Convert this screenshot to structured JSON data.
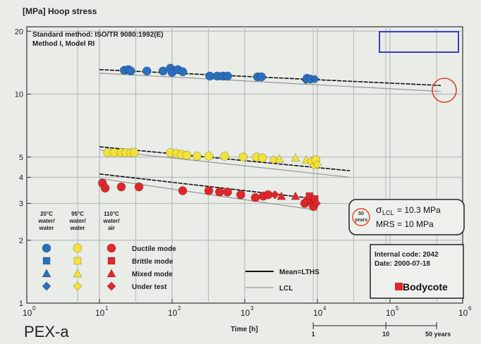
{
  "chart_data": {
    "type": "scatter",
    "title": "",
    "ylabel": "[MPa] Hoop stress",
    "xlabel": "Time [h]",
    "x_scale": "log",
    "y_scale": "log",
    "xlim": [
      1,
      1000000
    ],
    "ylim": [
      1,
      21
    ],
    "grid": true,
    "x_ticks": [
      {
        "value": 1,
        "base": "10",
        "exp": "0"
      },
      {
        "value": 10,
        "base": "10",
        "exp": "1"
      },
      {
        "value": 100,
        "base": "10",
        "exp": "2"
      },
      {
        "value": 1000,
        "base": "10",
        "exp": "3"
      },
      {
        "value": 10000,
        "base": "10",
        "exp": "4"
      },
      {
        "value": 100000,
        "base": "10",
        "exp": "5"
      },
      {
        "value": 1000000,
        "base": "10",
        "exp": "6"
      }
    ],
    "y_ticks": [
      {
        "value": 1,
        "label": "1"
      },
      {
        "value": 2,
        "label": "2"
      },
      {
        "value": 3,
        "label": "3"
      },
      {
        "value": 4,
        "label": "4"
      },
      {
        "value": 5,
        "label": "5"
      },
      {
        "value": 10,
        "label": "10"
      },
      {
        "value": 20,
        "label": "20"
      }
    ],
    "method_text": [
      "Standard method: ISO/TR 9080:1992(E)",
      "Method I, Model RI"
    ],
    "product_label": "PEX-a",
    "years_axis": {
      "ticks": [
        {
          "label": "1",
          "x": 8766
        },
        {
          "label": "10",
          "x": 87660
        },
        {
          "label": "50 years",
          "x": 438300
        }
      ]
    },
    "legend": {
      "columns": [
        {
          "header": [
            "20°C",
            "water/",
            "water"
          ]
        },
        {
          "header": [
            "95°C",
            "water/",
            "water"
          ]
        },
        {
          "header": [
            "110°C",
            "water/",
            "air"
          ]
        }
      ],
      "modes": [
        {
          "label": "Ductile mode",
          "shape": "circle"
        },
        {
          "label": "Brittle mode",
          "shape": "square"
        },
        {
          "label": "Mixed mode",
          "shape": "triangle"
        },
        {
          "label": "Under test",
          "shape": "diamond"
        }
      ],
      "lines": [
        {
          "label": "Mean=LTHS",
          "style": "solid-bold"
        },
        {
          "label": "LCL",
          "style": "thin"
        }
      ]
    },
    "result_box": {
      "sigma": "σ",
      "sigma_sub": "LCL",
      "sigma_value": "= 10.3 MPa",
      "mrs": "MRS = 10 MPa",
      "years_badge": [
        "50",
        "years"
      ]
    },
    "info_box": {
      "code": "Internal code: 2042",
      "date": "2000-07-18",
      "date_label": "Date: 2000-07-18",
      "logo": "Bodycote"
    },
    "colors": {
      "blue": "#2a6fbf",
      "yellow": "#f2e23a",
      "red": "#e1262b",
      "grid": "#b9bdb9",
      "annotation": "#d9442f",
      "frame_blue": "#3a3fb5"
    },
    "series": [
      {
        "name": "20°C",
        "color_key": "blue",
        "points": [
          {
            "x": 22,
            "y": 13.0,
            "shape": "circle"
          },
          {
            "x": 25,
            "y": 13.1,
            "shape": "circle"
          },
          {
            "x": 27,
            "y": 12.9,
            "shape": "circle"
          },
          {
            "x": 45,
            "y": 12.9,
            "shape": "circle"
          },
          {
            "x": 75,
            "y": 12.9,
            "shape": "circle"
          },
          {
            "x": 95,
            "y": 13.3,
            "shape": "circle"
          },
          {
            "x": 100,
            "y": 12.7,
            "shape": "circle"
          },
          {
            "x": 120,
            "y": 13.1,
            "shape": "circle"
          },
          {
            "x": 140,
            "y": 12.8,
            "shape": "circle"
          },
          {
            "x": 330,
            "y": 12.2,
            "shape": "circle"
          },
          {
            "x": 420,
            "y": 12.2,
            "shape": "circle"
          },
          {
            "x": 500,
            "y": 12.2,
            "shape": "circle"
          },
          {
            "x": 580,
            "y": 12.2,
            "shape": "circle"
          },
          {
            "x": 1500,
            "y": 12.1,
            "shape": "circle"
          },
          {
            "x": 1700,
            "y": 12.1,
            "shape": "circle"
          },
          {
            "x": 6900,
            "y": 11.7,
            "shape": "diamond"
          },
          {
            "x": 7200,
            "y": 11.9,
            "shape": "circle"
          },
          {
            "x": 8000,
            "y": 11.8,
            "shape": "circle"
          },
          {
            "x": 9300,
            "y": 11.8,
            "shape": "diamond"
          }
        ],
        "mean_line": [
          {
            "x": 10,
            "y": 13.1
          },
          {
            "x": 500000,
            "y": 11.0
          }
        ],
        "lcl_line": [
          {
            "x": 10,
            "y": 12.6
          },
          {
            "x": 500000,
            "y": 10.3
          }
        ]
      },
      {
        "name": "95°C",
        "color_key": "yellow",
        "points": [
          {
            "x": 13,
            "y": 5.25,
            "shape": "circle"
          },
          {
            "x": 16,
            "y": 5.25,
            "shape": "circle"
          },
          {
            "x": 20,
            "y": 5.25,
            "shape": "circle"
          },
          {
            "x": 23,
            "y": 5.25,
            "shape": "circle"
          },
          {
            "x": 27,
            "y": 5.25,
            "shape": "circle"
          },
          {
            "x": 30,
            "y": 5.25,
            "shape": "circle"
          },
          {
            "x": 95,
            "y": 5.25,
            "shape": "circle"
          },
          {
            "x": 115,
            "y": 5.2,
            "shape": "circle"
          },
          {
            "x": 135,
            "y": 5.15,
            "shape": "circle"
          },
          {
            "x": 160,
            "y": 5.1,
            "shape": "circle"
          },
          {
            "x": 220,
            "y": 5.05,
            "shape": "circle"
          },
          {
            "x": 320,
            "y": 5.05,
            "shape": "circle"
          },
          {
            "x": 530,
            "y": 5.05,
            "shape": "circle"
          },
          {
            "x": 950,
            "y": 5.0,
            "shape": "circle"
          },
          {
            "x": 1450,
            "y": 5.0,
            "shape": "circle"
          },
          {
            "x": 1750,
            "y": 4.95,
            "shape": "circle"
          },
          {
            "x": 2500,
            "y": 4.85,
            "shape": "diamond"
          },
          {
            "x": 3000,
            "y": 4.9,
            "shape": "triangle"
          },
          {
            "x": 5000,
            "y": 4.95,
            "shape": "triangle"
          },
          {
            "x": 7000,
            "y": 4.85,
            "shape": "triangle"
          },
          {
            "x": 8500,
            "y": 4.75,
            "shape": "circle"
          },
          {
            "x": 9000,
            "y": 4.55,
            "shape": "diamond"
          },
          {
            "x": 9500,
            "y": 4.85,
            "shape": "circle"
          },
          {
            "x": 10000,
            "y": 4.6,
            "shape": "diamond"
          }
        ],
        "mean_line": [
          {
            "x": 10,
            "y": 5.6
          },
          {
            "x": 28000,
            "y": 4.3
          }
        ],
        "lcl_line": [
          {
            "x": 10,
            "y": 5.4
          },
          {
            "x": 28000,
            "y": 4.0
          }
        ]
      },
      {
        "name": "110°C",
        "color_key": "red",
        "points": [
          {
            "x": 11,
            "y": 3.75,
            "shape": "circle"
          },
          {
            "x": 12,
            "y": 3.55,
            "shape": "circle"
          },
          {
            "x": 20,
            "y": 3.6,
            "shape": "circle"
          },
          {
            "x": 35,
            "y": 3.6,
            "shape": "circle"
          },
          {
            "x": 140,
            "y": 3.45,
            "shape": "circle"
          },
          {
            "x": 320,
            "y": 3.45,
            "shape": "circle"
          },
          {
            "x": 450,
            "y": 3.4,
            "shape": "circle"
          },
          {
            "x": 580,
            "y": 3.4,
            "shape": "circle"
          },
          {
            "x": 880,
            "y": 3.3,
            "shape": "circle"
          },
          {
            "x": 1400,
            "y": 3.2,
            "shape": "circle"
          },
          {
            "x": 1800,
            "y": 3.25,
            "shape": "circle"
          },
          {
            "x": 2100,
            "y": 3.3,
            "shape": "circle"
          },
          {
            "x": 2600,
            "y": 3.3,
            "shape": "diamond"
          },
          {
            "x": 3200,
            "y": 3.25,
            "shape": "triangle"
          },
          {
            "x": 5000,
            "y": 3.25,
            "shape": "triangle"
          },
          {
            "x": 6700,
            "y": 3.0,
            "shape": "circle"
          },
          {
            "x": 7300,
            "y": 3.1,
            "shape": "circle"
          },
          {
            "x": 7800,
            "y": 3.25,
            "shape": "square"
          },
          {
            "x": 8300,
            "y": 3.0,
            "shape": "diamond"
          },
          {
            "x": 8800,
            "y": 2.9,
            "shape": "circle"
          },
          {
            "x": 9200,
            "y": 3.15,
            "shape": "square"
          },
          {
            "x": 9700,
            "y": 3.0,
            "shape": "diamond"
          }
        ],
        "mean_line": [
          {
            "x": 10,
            "y": 4.15
          },
          {
            "x": 10000,
            "y": 3.15
          }
        ],
        "lcl_line": [
          {
            "x": 10,
            "y": 3.95
          },
          {
            "x": 10000,
            "y": 2.78
          }
        ]
      }
    ]
  }
}
